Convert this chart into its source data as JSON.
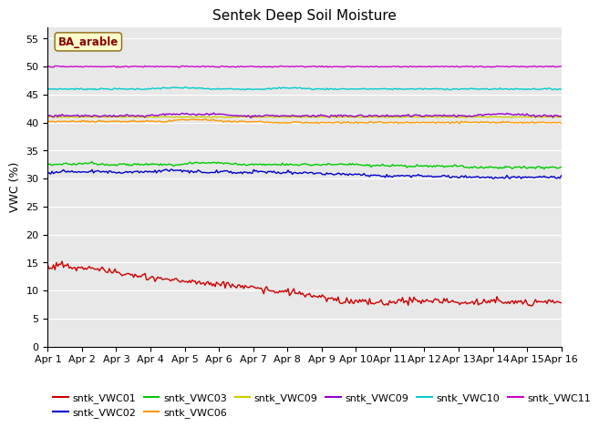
{
  "title": "Sentek Deep Soil Moisture",
  "ylabel": "VWC (%)",
  "annotation": "BA_arable",
  "ylim": [
    0,
    57
  ],
  "yticks": [
    0,
    5,
    10,
    15,
    20,
    25,
    30,
    35,
    40,
    45,
    50,
    55
  ],
  "x_labels": [
    "Apr 1",
    "Apr 2",
    "Apr 3",
    "Apr 4",
    "Apr 5",
    "Apr 6",
    "Apr 7",
    "Apr 8",
    "Apr 9",
    "Apr 10",
    "Apr 11",
    "Apr 12",
    "Apr 13",
    "Apr 14",
    "Apr 15",
    "Apr 16"
  ],
  "n_days": 15,
  "n_pts": 360,
  "series": [
    {
      "key": "sntk_VWC01",
      "color": "#cc0000",
      "profile": [
        14.0,
        14.8,
        13.8,
        14.2,
        13.5,
        13.0,
        12.5,
        12.3,
        12.0,
        11.7,
        11.5,
        11.3,
        11.0,
        10.8,
        10.5,
        10.0,
        9.8,
        9.5,
        9.0,
        8.5,
        8.2,
        8.0,
        7.8,
        7.8,
        8.2,
        8.2,
        8.0,
        8.2,
        7.8,
        7.8,
        8.0,
        8.0,
        7.8,
        8.0,
        8.0,
        8.0
      ],
      "noise": 0.3,
      "seed": 1
    },
    {
      "key": "sntk_VWC02",
      "color": "#0000cc",
      "profile": [
        31.0,
        31.3,
        31.2,
        31.3,
        31.2,
        31.0,
        31.3,
        31.2,
        31.5,
        31.4,
        31.2,
        31.1,
        31.3,
        31.0,
        31.2,
        31.2,
        31.0,
        31.0,
        31.0,
        30.8,
        30.8,
        30.8,
        30.5,
        30.5,
        30.5,
        30.5,
        30.5,
        30.4,
        30.3,
        30.3,
        30.2,
        30.2,
        30.2,
        30.2,
        30.2,
        30.2
      ],
      "noise": 0.12,
      "seed": 2
    },
    {
      "key": "sntk_VWC03",
      "color": "#00cc00",
      "profile": [
        32.5,
        32.6,
        32.6,
        32.8,
        32.5,
        32.5,
        32.5,
        32.5,
        32.5,
        32.5,
        32.8,
        32.8,
        32.8,
        32.5,
        32.5,
        32.5,
        32.5,
        32.5,
        32.5,
        32.5,
        32.5,
        32.5,
        32.3,
        32.3,
        32.2,
        32.2,
        32.2,
        32.2,
        32.2,
        32.0,
        32.0,
        32.0,
        32.0,
        32.0,
        32.0,
        32.0
      ],
      "noise": 0.1,
      "seed": 3
    },
    {
      "key": "sntk_VWC06",
      "color": "#ff9900",
      "profile": [
        40.2,
        40.2,
        40.2,
        40.2,
        40.2,
        40.2,
        40.2,
        40.2,
        40.2,
        40.5,
        40.5,
        40.5,
        40.2,
        40.2,
        40.2,
        40.0,
        40.0,
        40.0,
        40.0,
        40.0,
        40.0,
        40.0,
        40.0,
        40.0,
        40.0,
        40.0,
        40.0,
        40.0,
        40.0,
        40.0,
        40.0,
        40.0,
        40.0,
        40.0,
        40.0,
        40.0
      ],
      "noise": 0.08,
      "seed": 4
    },
    {
      "key": "sntk_VWC09",
      "color": "#cccc00",
      "profile": [
        41.0,
        41.0,
        41.0,
        41.0,
        41.0,
        41.0,
        41.0,
        41.0,
        41.0,
        41.0,
        41.0,
        41.0,
        41.0,
        41.0,
        41.0,
        41.0,
        41.0,
        41.0,
        41.0,
        41.0,
        41.0,
        41.0,
        41.0,
        41.0,
        41.0,
        41.0,
        41.0,
        41.0,
        41.0,
        41.0,
        41.0,
        41.0,
        41.0,
        41.0,
        41.0,
        41.0
      ],
      "noise": 0.04,
      "seed": 5
    },
    {
      "key": "sntk_VWC09",
      "color": "#9900cc",
      "profile": [
        41.2,
        41.2,
        41.2,
        41.2,
        41.2,
        41.2,
        41.2,
        41.2,
        41.5,
        41.5,
        41.5,
        41.5,
        41.5,
        41.2,
        41.2,
        41.2,
        41.2,
        41.2,
        41.2,
        41.2,
        41.2,
        41.2,
        41.2,
        41.2,
        41.2,
        41.2,
        41.2,
        41.2,
        41.2,
        41.2,
        41.5,
        41.5,
        41.5,
        41.2,
        41.2,
        41.2
      ],
      "noise": 0.1,
      "seed": 6
    },
    {
      "key": "sntk_VWC10",
      "color": "#00cccc",
      "profile": [
        46.0,
        46.0,
        46.0,
        46.0,
        46.0,
        46.0,
        46.0,
        46.0,
        46.2,
        46.2,
        46.2,
        46.0,
        46.0,
        46.0,
        46.0,
        46.0,
        46.2,
        46.2,
        46.0,
        46.0,
        46.0,
        46.0,
        46.0,
        46.0,
        46.0,
        46.0,
        46.0,
        46.0,
        46.0,
        46.0,
        46.0,
        46.0,
        46.0,
        46.0,
        46.0,
        46.0
      ],
      "noise": 0.07,
      "seed": 7
    },
    {
      "key": "sntk_VWC11",
      "color": "#cc00cc",
      "profile": [
        50.0,
        50.0,
        50.0,
        50.0,
        50.0,
        50.0,
        50.0,
        50.0,
        50.0,
        50.0,
        50.0,
        50.0,
        50.0,
        50.0,
        50.0,
        50.0,
        50.0,
        50.0,
        50.0,
        50.0,
        50.0,
        50.0,
        50.0,
        50.0,
        50.0,
        50.0,
        50.0,
        50.0,
        50.0,
        50.0,
        50.0,
        50.0,
        50.0,
        50.0,
        50.0,
        50.0
      ],
      "noise": 0.05,
      "seed": 8
    }
  ],
  "legend_row1": [
    {
      "label": "sntk_VWC01",
      "color": "#cc0000"
    },
    {
      "label": "sntk_VWC02",
      "color": "#0000cc"
    },
    {
      "label": "sntk_VWC03",
      "color": "#00cc00"
    },
    {
      "label": "sntk_VWC06",
      "color": "#ff9900"
    },
    {
      "label": "sntk_VWC09",
      "color": "#cccc00"
    },
    {
      "label": "sntk_VWC09",
      "color": "#9900cc"
    }
  ],
  "legend_row2": [
    {
      "label": "sntk_VWC10",
      "color": "#00cccc"
    },
    {
      "label": "sntk_VWC11",
      "color": "#cc00cc"
    }
  ],
  "background_color": "#e8e8e8",
  "plot_bg": "#e8e8e8",
  "title_fontsize": 11,
  "axis_fontsize": 8,
  "legend_fontsize": 8
}
